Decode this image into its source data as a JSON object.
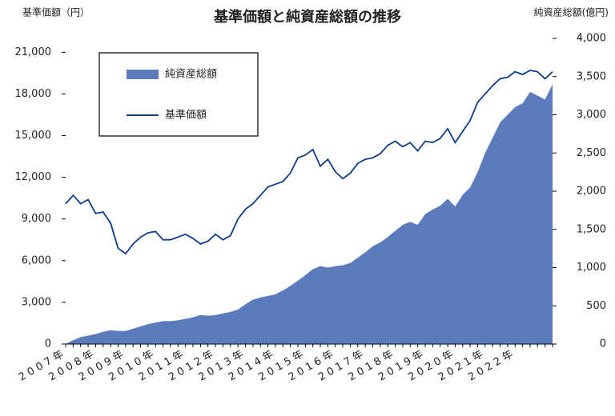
{
  "chart_data": {
    "type": "area-line",
    "title": "基準価額と純資産総額の推移",
    "y_axis_label": "基準価額（円）",
    "y2_axis_label": "純資産総額(億円)",
    "categories": [
      "2007年",
      null,
      null,
      null,
      "2008年",
      null,
      null,
      null,
      "2009年",
      null,
      null,
      null,
      "2010年",
      null,
      null,
      null,
      "2011年",
      null,
      null,
      null,
      "2012年",
      null,
      null,
      null,
      "2013年",
      null,
      null,
      null,
      "2014年",
      null,
      null,
      null,
      "2015年",
      null,
      null,
      null,
      "2016年",
      null,
      null,
      null,
      "2017年",
      null,
      null,
      null,
      "2018年",
      null,
      null,
      null,
      "2019年",
      null,
      null,
      null,
      "2020年",
      null,
      null,
      null,
      "2021年",
      null,
      null,
      null,
      "2022年",
      null,
      null,
      null,
      null,
      null
    ],
    "ylim": [
      0,
      22000
    ],
    "yticks": [
      0,
      {
        "value": 3000,
        "label": "3,000"
      },
      {
        "value": 6000,
        "label": "6,000"
      },
      {
        "value": 9000,
        "label": "9,000"
      },
      {
        "value": 12000,
        "label": "12,000"
      },
      {
        "value": 15000,
        "label": "15,000"
      },
      {
        "value": 18000,
        "label": "18,000"
      },
      {
        "value": 21000,
        "label": "21,000"
      }
    ],
    "y2lim": [
      0,
      4000
    ],
    "y2ticks": [
      0,
      500,
      {
        "value": 1000,
        "label": "1,000"
      },
      {
        "value": 1500,
        "label": "1,500"
      },
      {
        "value": 2000,
        "label": "2,000"
      },
      {
        "value": 2500,
        "label": "2,500"
      },
      {
        "value": 3000,
        "label": "3,000"
      },
      {
        "value": 3500,
        "label": "3,500"
      },
      {
        "value": 4000,
        "label": "4,000"
      }
    ],
    "series": [
      {
        "name": "純資産総額",
        "type": "area",
        "axis": "y2",
        "color": "#5b7bbd",
        "values": [
          0,
          50,
          90,
          110,
          130,
          160,
          180,
          170,
          170,
          200,
          230,
          260,
          280,
          300,
          300,
          310,
          330,
          350,
          380,
          370,
          380,
          400,
          420,
          450,
          520,
          580,
          610,
          630,
          650,
          700,
          760,
          830,
          900,
          980,
          1020,
          1000,
          1020,
          1030,
          1060,
          1130,
          1200,
          1280,
          1330,
          1400,
          1480,
          1560,
          1600,
          1560,
          1700,
          1760,
          1810,
          1900,
          1800,
          1950,
          2050,
          2250,
          2500,
          2700,
          2900,
          3000,
          3100,
          3150,
          3300,
          3250,
          3200,
          3400
        ]
      },
      {
        "name": "基準価額",
        "type": "line",
        "color": "#0d3a8c",
        "values": [
          10100,
          10700,
          10100,
          10400,
          9400,
          9500,
          8700,
          6900,
          6500,
          7200,
          7700,
          8000,
          8100,
          7500,
          7500,
          7700,
          7900,
          7600,
          7200,
          7400,
          7900,
          7500,
          7800,
          9000,
          9700,
          10100,
          10700,
          11300,
          11500,
          11700,
          12300,
          13400,
          13600,
          14000,
          12800,
          13300,
          12400,
          11900,
          12300,
          13000,
          13300,
          13400,
          13700,
          14300,
          14600,
          14200,
          14500,
          13900,
          14600,
          14500,
          14800,
          15500,
          14500,
          15300,
          16100,
          17400,
          18000,
          18600,
          19100,
          19200,
          19600,
          19400,
          19700,
          19600,
          19100,
          19600
        ]
      }
    ]
  }
}
